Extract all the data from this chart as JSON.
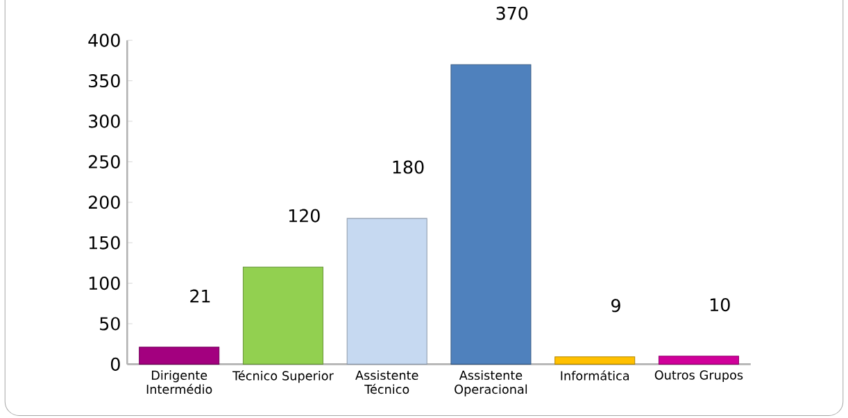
{
  "chart_data": {
    "type": "bar",
    "categories": [
      "Dirigente Intermédio",
      "Técnico Superior",
      "Assistente Técnico",
      "Assistente Operacional",
      "Informática",
      "Outros Grupos"
    ],
    "values": [
      21,
      120,
      180,
      370,
      9,
      10
    ],
    "colors": [
      "#a3007f",
      "#92d050",
      "#c6d9f1",
      "#4f81bd",
      "#ffc000",
      "#d0009a"
    ],
    "ylim": [
      0,
      400
    ],
    "yticks": [
      0,
      50,
      100,
      150,
      200,
      250,
      300,
      350,
      400
    ],
    "data_labels": true,
    "grid": false
  }
}
